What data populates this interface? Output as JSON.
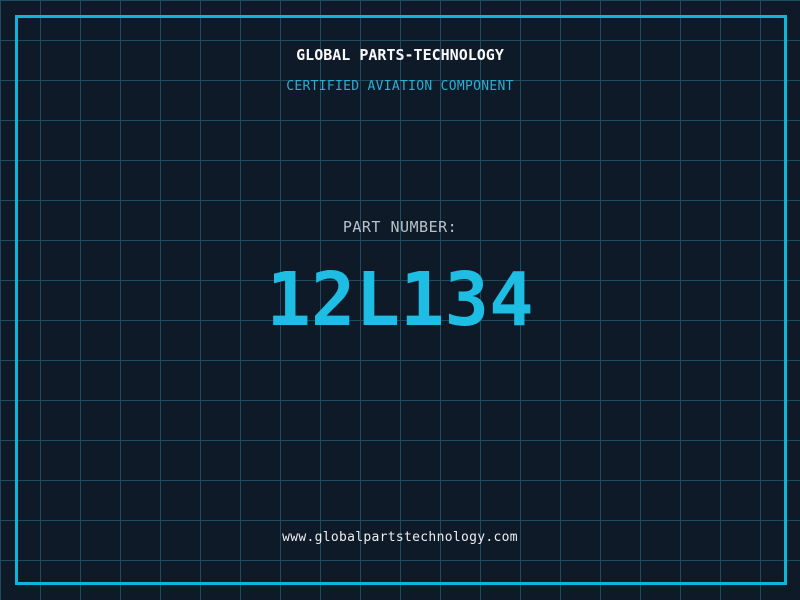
{
  "label": {
    "company": "GLOBAL PARTS-TECHNOLOGY",
    "certification": "CERTIFIED AVIATION COMPONENT",
    "part_number_label": "PART NUMBER:",
    "part_number": "12L134",
    "website": "www.globalpartstechnology.com"
  },
  "colors": {
    "background": "#0f1a29",
    "grid": "#1d4c60",
    "frame": "#0db5da",
    "title": "#f8f8f8",
    "subtitle": "#2aaed4",
    "part_label": "#b8c2ca",
    "part_number": "#1ebde4",
    "website": "#eceff1"
  }
}
